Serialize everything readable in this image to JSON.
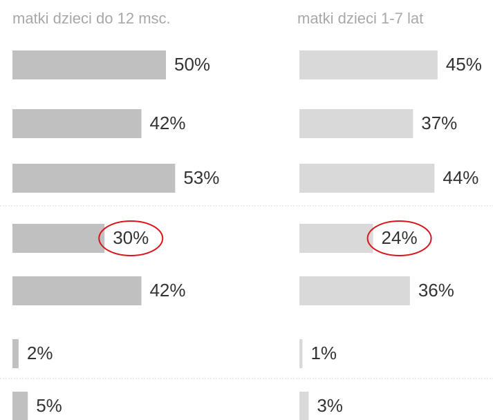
{
  "chart_data": [
    {
      "type": "bar",
      "title": "matki dzieci do 12 msc.",
      "color": "#c0c0c0",
      "values": [
        50,
        42,
        53,
        30,
        42,
        2,
        5
      ],
      "value_labels": [
        "50%",
        "42%",
        "53%",
        "30%",
        "42%",
        "2%",
        "5%"
      ]
    },
    {
      "type": "bar",
      "title": "matki dzieci 1-7 lat",
      "color": "#d9d9d9",
      "values": [
        45,
        37,
        44,
        24,
        36,
        1,
        3
      ],
      "value_labels": [
        "45%",
        "37%",
        "44%",
        "24%",
        "36%",
        "1%",
        "3%"
      ]
    }
  ]
}
